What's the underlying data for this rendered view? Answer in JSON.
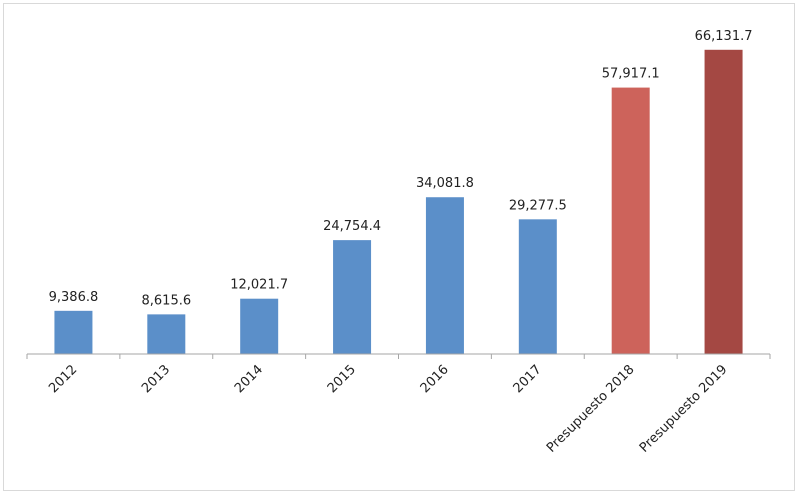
{
  "chart_data": {
    "type": "bar",
    "title": "",
    "xlabel": "",
    "ylabel": "",
    "ylim": [
      0,
      70000
    ],
    "grid": false,
    "categories": [
      "2012",
      "2013",
      "2014",
      "2015",
      "2016",
      "2017",
      "Presupuesto 2018",
      "Presupuesto 2019"
    ],
    "values": [
      9386.8,
      8615.6,
      12021.7,
      24754.4,
      34081.8,
      29277.5,
      57917.1,
      66131.7
    ],
    "value_labels": [
      "9,386.8",
      "8,615.6",
      "12,021.7",
      "24,754.4",
      "34,081.8",
      "29,277.5",
      "57,917.1",
      "66,131.7"
    ],
    "colors": [
      "#5b8fc9",
      "#5b8fc9",
      "#5b8fc9",
      "#5b8fc9",
      "#5b8fc9",
      "#5b8fc9",
      "#cd635b",
      "#a44843"
    ]
  }
}
